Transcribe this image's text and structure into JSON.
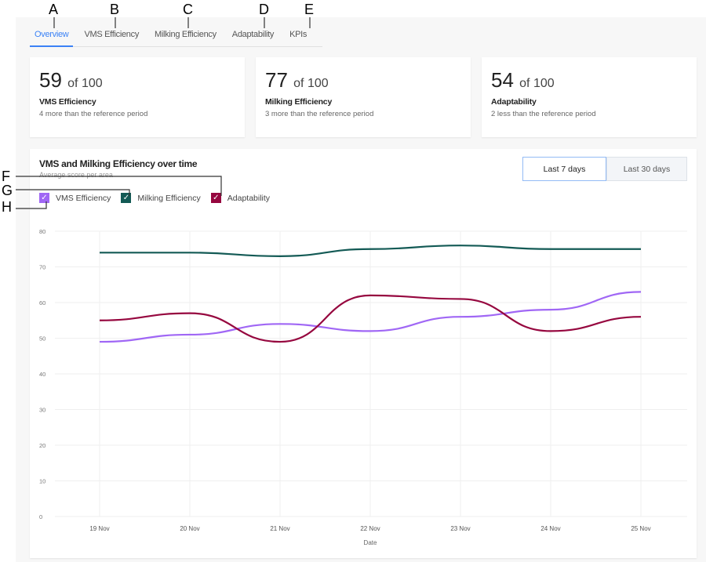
{
  "tabs": [
    {
      "label": "Overview",
      "active": true
    },
    {
      "label": "VMS Efficiency"
    },
    {
      "label": "Milking Efficiency"
    },
    {
      "label": "Adaptability"
    },
    {
      "label": "KPIs"
    }
  ],
  "cards": [
    {
      "score": "59",
      "of": "of 100",
      "label": "VMS Efficiency",
      "sub": "4 more than the reference period"
    },
    {
      "score": "77",
      "of": "of 100",
      "label": "Milking Efficiency",
      "sub": "3 more than the reference period"
    },
    {
      "score": "54",
      "of": "of 100",
      "label": "Adaptability",
      "sub": "2 less than the reference period"
    }
  ],
  "chart": {
    "title": "VMS and Milking Efficiency over time",
    "subtitle": "Average score per area",
    "range_buttons": [
      "Last 7 days",
      "Last 30 days"
    ],
    "selected_range": "Last 7 days"
  },
  "annotations": [
    "A",
    "B",
    "C",
    "D",
    "E",
    "F",
    "G",
    "H"
  ],
  "chart_data": {
    "type": "line",
    "x": [
      "19 Nov",
      "20 Nov",
      "21 Nov",
      "22 Nov",
      "23 Nov",
      "24 Nov",
      "25 Nov"
    ],
    "xlabel": "Date",
    "ylabel": "",
    "ylim": [
      0,
      80
    ],
    "yticks": [
      "0",
      "10",
      "20",
      "30",
      "40",
      "50",
      "60",
      "70",
      "80"
    ],
    "grid": true,
    "legend": "top-left",
    "series": [
      {
        "name": "VMS Efficiency",
        "color": "#a067f5",
        "values": [
          49,
          51,
          54,
          52,
          56,
          58,
          63
        ]
      },
      {
        "name": "Milking Efficiency",
        "color": "#135a55",
        "values": [
          74,
          74,
          73,
          75,
          76,
          75,
          75
        ]
      },
      {
        "name": "Adaptability",
        "color": "#96073f",
        "values": [
          55,
          57,
          49,
          62,
          61,
          52,
          56
        ]
      }
    ]
  }
}
